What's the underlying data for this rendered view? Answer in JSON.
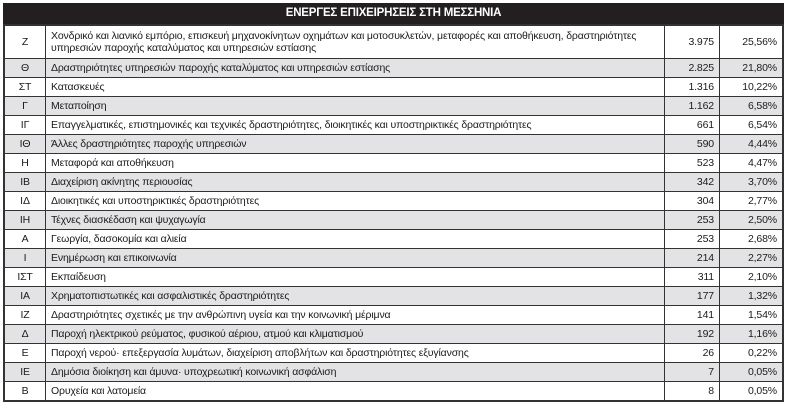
{
  "title": "ΕΝΕΡΓΕΣ ΕΠΙΧΕΙΡΗΣΕΙΣ ΣΤΗ ΜΕΣΣΗΝΙΑ",
  "rows": [
    {
      "code": "Ζ",
      "desc": "Χονδρικό και λιανικό εμπόριο, επισκευή μηχανοκίνητων οχημάτων και μοτοσυκλετών, μεταφορές και αποθήκευση, δραστηριότητες υπηρεσιών παροχής καταλύματος και υπηρεσιών εστίασης",
      "count": "3.975",
      "pct": "25,56%"
    },
    {
      "code": "Θ",
      "desc": "Δραστηριότητες υπηρεσιών παροχής καταλύματος και υπηρεσιών εστίασης",
      "count": "2.825",
      "pct": "21,80%"
    },
    {
      "code": "ΣΤ",
      "desc": "Κατασκευές",
      "count": "1.316",
      "pct": "10,22%"
    },
    {
      "code": "Γ",
      "desc": "Μεταποίηση",
      "count": "1.162",
      "pct": "6,58%"
    },
    {
      "code": "ΙΓ",
      "desc": "Επαγγελματικές, επιστημονικές και τεχνικές δραστηριότητες, διοικητικές και υποστηρικτικές δραστηριότητες",
      "count": "661",
      "pct": "6,54%"
    },
    {
      "code": "ΙΘ",
      "desc": "Άλλες δραστηριότητες παροχής υπηρεσιών",
      "count": "590",
      "pct": "4,44%"
    },
    {
      "code": "Η",
      "desc": "Μεταφορά και αποθήκευση",
      "count": "523",
      "pct": "4,47%"
    },
    {
      "code": "ΙΒ",
      "desc": "Διαχείριση ακίνητης περιουσίας",
      "count": "342",
      "pct": "3,70%"
    },
    {
      "code": "ΙΔ",
      "desc": "Διοικητικές και υποστηρικτικές δραστηριότητες",
      "count": "304",
      "pct": "2,77%"
    },
    {
      "code": "ΙΗ",
      "desc": "Τέχνες διασκέδαση και ψυχαγωγία",
      "count": "253",
      "pct": "2,50%"
    },
    {
      "code": "Α",
      "desc": "Γεωργία, δασοκομία και αλιεία",
      "count": "253",
      "pct": "2,68%"
    },
    {
      "code": "Ι",
      "desc": "Ενημέρωση και επικοινωνία",
      "count": "214",
      "pct": "2,27%"
    },
    {
      "code": "ΙΣΤ",
      "desc": "Εκπαίδευση",
      "count": "311",
      "pct": "2,10%"
    },
    {
      "code": "ΙΑ",
      "desc": "Χρηματοπιστωτικές και ασφαλιστικές δραστηριότητες",
      "count": "177",
      "pct": "1,32%"
    },
    {
      "code": "ΙΖ",
      "desc": "Δραστηριότητες σχετικές με την ανθρώπινη υγεία και την κοινωνική μέριμνα",
      "count": "141",
      "pct": "1,54%"
    },
    {
      "code": "Δ",
      "desc": "Παροχή ηλεκτρικού ρεύματος, φυσικού αέριου, ατμού και κλιματισμού",
      "count": "192",
      "pct": "1,16%"
    },
    {
      "code": "Ε",
      "desc": "Παροχή νερού· επεξεργασία λυμάτων, διαχείριση αποβλήτων και δραστηριότητες εξυγίανσης",
      "count": "26",
      "pct": "0,22%"
    },
    {
      "code": "ΙΕ",
      "desc": "Δημόσια  διοίκηση και άμυνα· υποχρεωτική κοινωνική ασφάλιση",
      "count": "7",
      "pct": "0,05%"
    },
    {
      "code": "Β",
      "desc": "Ορυχεία και λατομεία",
      "count": "8",
      "pct": "0,05%"
    }
  ]
}
